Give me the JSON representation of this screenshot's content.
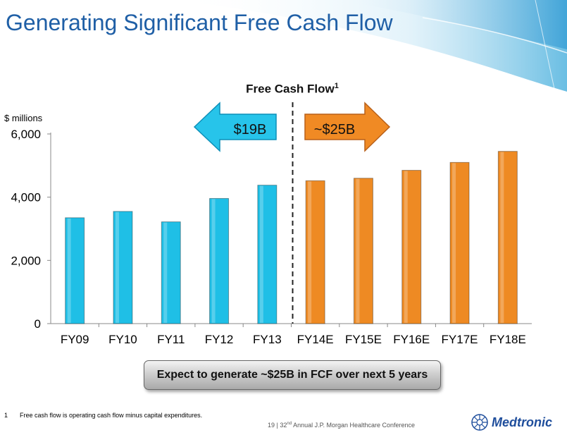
{
  "slide": {
    "title": "Generating Significant Free Cash Flow",
    "callout": "Expect to generate ~$25B in FCF over next 5 years",
    "footnote_number": "1",
    "footnote_text": "Free cash flow is operating cash flow minus capital expenditures.",
    "footer": {
      "page": "19",
      "separator": "|",
      "ordinal_number": "32",
      "ordinal_suffix": "nd",
      "event": "Annual J.P. Morgan Healthcare Conference"
    },
    "logo_text": "Medtronic"
  },
  "chart_data": {
    "type": "bar",
    "title": "Free Cash Flow",
    "title_superscript": "1",
    "ylabel": "$ millions",
    "ylim": [
      0,
      6000
    ],
    "yticks": [
      "0",
      "2,000",
      "4,000",
      "6,000"
    ],
    "ytick_values": [
      0,
      2000,
      4000,
      6000
    ],
    "categories": [
      "FY09",
      "FY10",
      "FY11",
      "FY12",
      "FY13",
      "FY14E",
      "FY15E",
      "FY16E",
      "FY17E",
      "FY18E"
    ],
    "values": [
      3350,
      3550,
      3220,
      3960,
      4380,
      4520,
      4600,
      4850,
      5100,
      5450
    ],
    "bar_colors": [
      "#1fbfe6",
      "#1fbfe6",
      "#1fbfe6",
      "#1fbfe6",
      "#1fbfe6",
      "#ee8a23",
      "#ee8a23",
      "#ee8a23",
      "#ee8a23",
      "#ee8a23"
    ],
    "divider": "dashed line between FY13 and FY14E",
    "annotations": {
      "historical": {
        "label": "$19B",
        "direction": "left",
        "color": "#27c4ea"
      },
      "projected": {
        "label": "~$25B",
        "direction": "right",
        "color": "#f08a24"
      }
    },
    "grid": false,
    "legend": "none"
  }
}
